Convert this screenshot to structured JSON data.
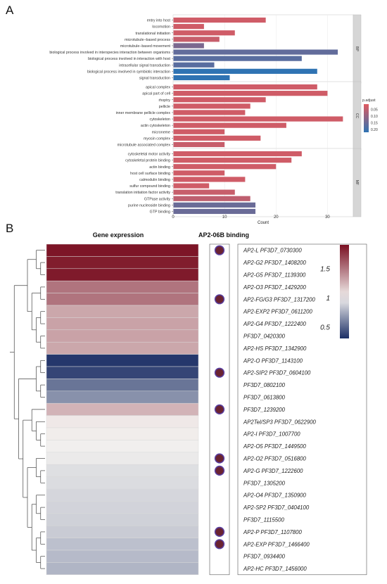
{
  "panel_labels": {
    "a": "A",
    "b": "B"
  },
  "chart_data": [
    {
      "type": "bar",
      "orientation": "horizontal",
      "xlabel": "Count",
      "xlim": [
        0,
        35
      ],
      "x_ticks": [
        0,
        10,
        20,
        30
      ],
      "grid": true,
      "legend": {
        "title": "p.adjust",
        "position": "right",
        "ticks": [
          "0.05",
          "0.10",
          "0.15",
          "0.20"
        ],
        "range": [
          0.01,
          0.22
        ],
        "low_color": "#e05a5f",
        "high_color": "#2f73b3"
      },
      "facets": [
        {
          "name": "BP",
          "categories": [
            "entry into host",
            "locomotion",
            "translational initiation",
            "microtubule−based process",
            "microtubule−based movement",
            "biological process involved in interspecies interaction between organisms",
            "biological process involved in interaction with host",
            "intracellular signal transduction",
            "biological process involved in symbiotic interaction",
            "signal transduction"
          ],
          "values": [
            18,
            6,
            12,
            9,
            6,
            32,
            25,
            8,
            28,
            11
          ],
          "p_adjust": [
            0.03,
            0.03,
            0.03,
            0.04,
            0.13,
            0.16,
            0.17,
            0.17,
            0.22,
            0.22
          ]
        },
        {
          "name": "CC",
          "categories": [
            "apical complex",
            "apical part of cell",
            "rhoptry",
            "pellicle",
            "inner membrane pellicle complex",
            "cytoskeleton",
            "actin cytoskeleton",
            "microneme",
            "myosin complex",
            "microtubule associated complex"
          ],
          "values": [
            28,
            30,
            18,
            15,
            14,
            33,
            22,
            10,
            17,
            10
          ],
          "p_adjust": [
            0.03,
            0.03,
            0.03,
            0.03,
            0.03,
            0.03,
            0.03,
            0.03,
            0.03,
            0.04
          ]
        },
        {
          "name": "MF",
          "categories": [
            "cytoskeletal motor activity",
            "cytoskeletal protein binding",
            "actin binding",
            "host cell surface binding",
            "calmodulin binding",
            "sulfur compound binding",
            "translation initiation factor activity",
            "GTPase activity",
            "purine nucleoside binding",
            "GTP binding"
          ],
          "values": [
            25,
            23,
            20,
            10,
            14,
            7,
            12,
            15,
            16,
            16
          ],
          "p_adjust": [
            0.03,
            0.03,
            0.03,
            0.03,
            0.03,
            0.03,
            0.04,
            0.05,
            0.15,
            0.15
          ]
        }
      ]
    },
    {
      "type": "heatmap",
      "title": "Gene expression",
      "binding_title": "AP2-06B binding",
      "legend": {
        "ticks": [
          "1.5",
          "1",
          "0.5"
        ],
        "range": [
          0.3,
          1.9
        ],
        "high_color": "#7a1022",
        "mid_color": "#f4f2f0",
        "low_color": "#1c2f66"
      },
      "genes": [
        "AP2-L PF3D7_0730300",
        "AP2-G2 PF3D7_1408200",
        "AP2-G5 PF3D7_1139300",
        "AP2-O3 PF3D7_1429200",
        "AP2-FG/G3 PF3D7_1317200",
        "AP2-EXP2 PF3D7_0611200",
        "AP2-G4 PF3D7_1222400",
        "PF3D7_0420300",
        "AP2-HS PF3D7_1342900",
        "AP2-O PF3D7_1143100",
        "AP2-SIP2 PF3D7_0604100",
        "PF3D7_0802100",
        "PF3D7_0613800",
        "PF3D7_1239200",
        "AP2Tel/SP3 PF3D7_0622900",
        "AP2-I PF3D7_1007700",
        "AP2-O5 PF3D7_1449500",
        "AP2-O2 PF3D7_0516800",
        "AP2-G PF3D7_1222600",
        "PF3D7_1305200",
        "AP2-O4 PF3D7_1350900",
        "AP2-SP2 PF3D7_0404100",
        "PF3D7_1115500",
        "AP2-P PF3D7_1107800",
        "AP2-EXP PF3D7_1466400",
        "PF3D7_0934400",
        "AP2-HC PF3D7_1456000"
      ],
      "values": [
        1.88,
        1.85,
        1.86,
        1.5,
        1.5,
        1.3,
        1.32,
        1.32,
        1.3,
        0.33,
        0.38,
        0.55,
        0.65,
        1.25,
        1.04,
        1.02,
        0.99,
        0.97,
        0.93,
        0.92,
        0.9,
        0.89,
        0.88,
        0.86,
        0.82,
        0.8,
        0.78
      ],
      "binding": [
        true,
        false,
        false,
        false,
        true,
        false,
        false,
        false,
        false,
        false,
        true,
        false,
        false,
        true,
        false,
        false,
        false,
        true,
        true,
        false,
        false,
        false,
        false,
        true,
        true,
        false,
        false
      ]
    }
  ]
}
